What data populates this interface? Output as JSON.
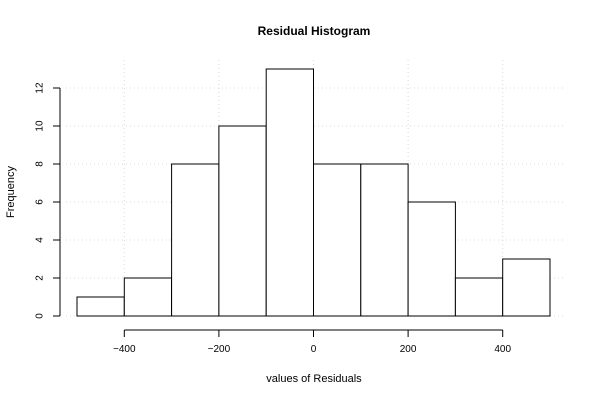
{
  "chart_data": {
    "type": "bar",
    "title": "Residual Histogram",
    "xlabel": "values of Residuals",
    "ylabel": "Frequency",
    "bin_edges": [
      -500,
      -400,
      -300,
      -200,
      -100,
      0,
      100,
      200,
      300,
      400,
      500
    ],
    "counts": [
      1,
      2,
      8,
      10,
      13,
      8,
      8,
      6,
      2,
      3
    ],
    "xlim": [
      -500,
      500
    ],
    "ylim": [
      0,
      13
    ],
    "x_ticks": [
      -400,
      -200,
      0,
      200,
      400
    ],
    "x_tick_labels": [
      "−400",
      "−200",
      "0",
      "200",
      "400"
    ],
    "y_ticks": [
      0,
      2,
      4,
      6,
      8,
      10,
      12
    ],
    "y_tick_labels": [
      "0",
      "2",
      "4",
      "6",
      "8",
      "10",
      "12"
    ],
    "grid": true,
    "bar_fill": "#ffffff",
    "bar_stroke": "#000000",
    "grid_color": "#d9d9d9"
  }
}
